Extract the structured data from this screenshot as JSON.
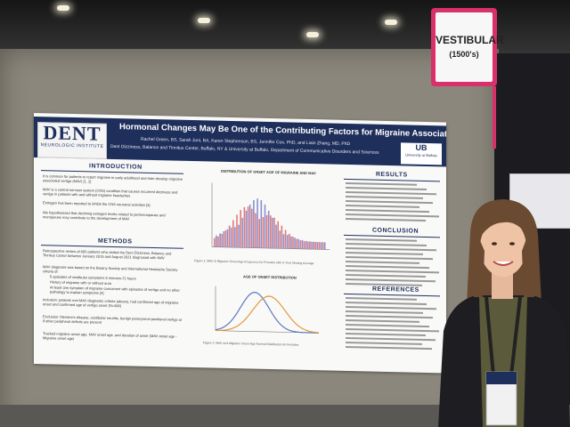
{
  "sign": {
    "title": "VESTIBULAR",
    "subtitle": "(1500's)"
  },
  "poster": {
    "logo_name": "DENT",
    "logo_sub": "NEUROLOGIC INSTITUTE",
    "title": "Hormonal Changes May Be One of the Contributing Factors for Migraine Associated Vertigo",
    "authors": "Rachel Green, BS, Sarah Joni, BA, Karen Stephenson, BS, Jennifer Cox, PhD, and Liain Zhang, MD, PhD",
    "affiliation": "Dent Dizziness, Balance and Tinnitus Center, Buffalo, NY & University at Buffalo, Department of Communicative Disorders and Sciences",
    "ub_mark": "UB",
    "ub_text": "University at Buffalo",
    "sections": {
      "introduction": "INTRODUCTION",
      "methods": "METHODS",
      "results": "RESULTS",
      "conclusion": "CONCLUSION",
      "references": "REFERENCES"
    },
    "intro_points": [
      "It is common for patients to report migraine in early adulthood and later develop migraine associated vertigo (MAV) [1, 2]",
      "MAV is a central nervous system (CNS) condition that causes recurrent dizziness and vertigo in patients with and without migraine headaches",
      "Estrogen has been reported to inhibit the CNS neuronal activities [3]",
      "We hypothesized that declining estrogen levels related to perimenopause and menopause may contribute to the development of MAV"
    ],
    "methods_points": [
      "Retrospective review of 693 patients who visited the Dent Dizziness, Balance and Tinnitus Center between January 2015 and August 2021 diagnosed with MAV",
      "MAV diagnosis was based on the Barany Society and International Headache Society criteria of:",
      "Inclusion: patients met MAV diagnostic criteria (above), had confirmed age of migraine onset and confirmed age of vertigo onset (N=380)",
      "Exclusion: Meniere's disease, vestibular neuritis, benign paroxysmal positional vertigo or if other peripheral deficits are present",
      "Tracked migraine onset age, MAV onset age, and duration of onset (MAV onset age - Migraine onset age)"
    ],
    "methods_sub": [
      "5 episodes of vestibular symptoms 5 minutes-72 hours",
      "History of migraine with or without aura",
      "At least one symptom of migraine concurrent with episodes of vertigo and no other pathology to explain symptoms [4]"
    ],
    "chart1_title": "DISTRIBUTION OF ONSET AGE OF MIGRAINE AND MAV",
    "chart1_caption": "Figure 1: MAV & Migraine Onset Age Frequency for Females with X-Year Moving Average",
    "chart2_title": "AGE OF ONSET DISTRIBUTION",
    "chart2_caption": "Figure 2: MAV and Migraine Onset Age Normal Distribution for Females"
  },
  "colors": {
    "banner": "#1f2f5c",
    "sign_border": "#d8306a",
    "bar_migraine": "#e07a7a",
    "bar_mav": "#8a8fd0",
    "curve_blue": "#5b78c2",
    "curve_orange": "#e39a3c"
  }
}
